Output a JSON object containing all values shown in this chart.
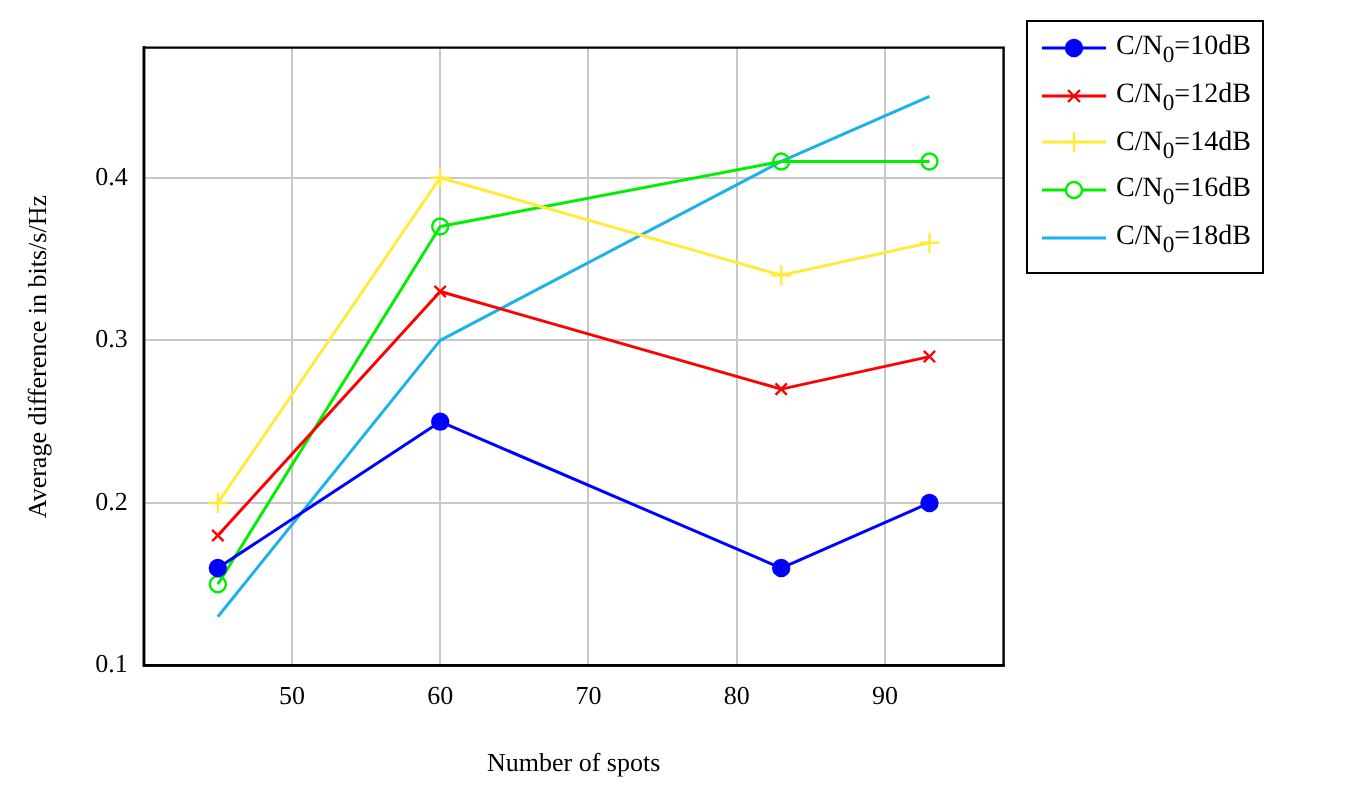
{
  "chart_data": {
    "type": "line",
    "xlabel": "Number of spots",
    "ylabel": "Average difference in bits/s/Hz",
    "x": [
      45,
      60,
      83,
      93
    ],
    "xlim": [
      40,
      98
    ],
    "xticks": [
      50,
      60,
      70,
      80,
      90
    ],
    "ylim": [
      0.1,
      0.48
    ],
    "yticks": [
      0.1,
      0.2,
      0.3,
      0.4
    ],
    "grid": true,
    "legend": "top right",
    "line_style": "solid",
    "series": [
      {
        "name": "C/N$_{0}$=10dB",
        "color": "#0000ff",
        "marker": "circle",
        "values": [
          0.16,
          0.25,
          0.16,
          0.2
        ]
      },
      {
        "name": "C/N$_{0}$=12dB",
        "color": "#ff0000",
        "marker": "cross",
        "values": [
          0.18,
          0.33,
          0.27,
          0.29
        ]
      },
      {
        "name": "C/N$_{0}$=14dB",
        "color": "#ffeb3b",
        "marker": "plus",
        "values": [
          0.2,
          0.4,
          0.34,
          0.36
        ]
      },
      {
        "name": "C/N$_{0}$=16dB",
        "color": "#00ee00",
        "marker": "open_circle",
        "values": [
          0.15,
          0.37,
          0.41,
          0.41
        ]
      },
      {
        "name": "C/N$_{0}$=18dB",
        "color": "#1ab2e8",
        "marker": "none",
        "values": [
          0.13,
          0.3,
          0.41,
          0.45
        ]
      }
    ]
  }
}
